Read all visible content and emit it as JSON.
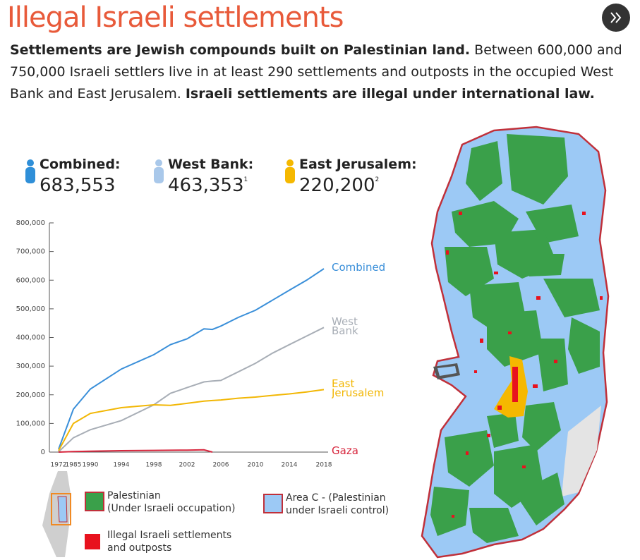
{
  "header": {
    "title": "Illegal Israeli settlements"
  },
  "intro": {
    "bold_1": "Settlements are Jewish compounds built on Palestinian land.",
    "text": "Between 600,000 and 750,000 Israeli settlers live in at least 290 settlements and outposts in the occupied West Bank and East Jerusalem.",
    "bold_2": "Israeli settlements are illegal under international law."
  },
  "stats": [
    {
      "label": "Combined:",
      "value": "683,553",
      "color": "#2f8fd8"
    },
    {
      "label": "West Bank:",
      "value": "463,353",
      "note": "1",
      "color": "#a9c8ea"
    },
    {
      "label": "East Jerusalem:",
      "value": "220,200",
      "note": "2",
      "color": "#f5b800"
    }
  ],
  "chart_data": {
    "type": "line",
    "x": [
      1972,
      1985,
      1990,
      1994,
      1998,
      2000,
      2002,
      2004,
      2005,
      2006,
      2008,
      2010,
      2012,
      2014,
      2016,
      2018
    ],
    "series": [
      {
        "name": "Combined",
        "color": "#3a8fd9",
        "values": [
          10000,
          150000,
          220000,
          290000,
          340000,
          375000,
          395000,
          430000,
          428000,
          440000,
          470000,
          495000,
          530000,
          565000,
          600000,
          640000
        ]
      },
      {
        "name": "West Bank",
        "color": "#a8aeb6",
        "values": [
          1000,
          50000,
          78000,
          110000,
          165000,
          205000,
          225000,
          245000,
          248000,
          250000,
          280000,
          310000,
          345000,
          375000,
          405000,
          435000
        ]
      },
      {
        "name": "East Jerusalem",
        "color": "#f2b705",
        "values": [
          5000,
          100000,
          135000,
          155000,
          165000,
          163000,
          170000,
          178000,
          180000,
          182000,
          188000,
          192000,
          198000,
          203000,
          210000,
          218000
        ]
      },
      {
        "name": "Gaza",
        "color": "#d7263d",
        "values": [
          0,
          2000,
          3000,
          5000,
          6000,
          6500,
          7000,
          8000,
          0,
          null,
          null,
          null,
          null,
          null,
          null,
          null
        ]
      }
    ],
    "xlim": [
      1972,
      2018
    ],
    "xticks": [
      1972,
      1985,
      1990,
      1994,
      1998,
      2002,
      2006,
      2010,
      2014,
      2018
    ],
    "ylim": [
      0,
      800000
    ],
    "yticks": [
      0,
      {
        "value": 100000,
        "label": "100,000"
      },
      {
        "value": 200000,
        "label": "200,000"
      },
      {
        "value": 300000,
        "label": "300,000"
      },
      {
        "value": 400000,
        "label": "400,000"
      },
      {
        "value": 500000,
        "label": "500,000"
      },
      {
        "value": 600000,
        "label": "600,000"
      },
      {
        "value": 700000,
        "label": "700,000"
      },
      {
        "value": 800000,
        "label": "800,000"
      }
    ]
  },
  "map_legend": [
    {
      "lines": [
        "Palestinian",
        "(Under Israeli occupation)"
      ],
      "color": "#3aa04a"
    },
    {
      "lines": [
        "Area C - (Palestinian",
        "under Israeli control)"
      ],
      "color": "#9cc9f5"
    },
    {
      "lines": [
        "Illegal Israeli settlements",
        "and outposts"
      ],
      "color": "#e8121e"
    }
  ]
}
